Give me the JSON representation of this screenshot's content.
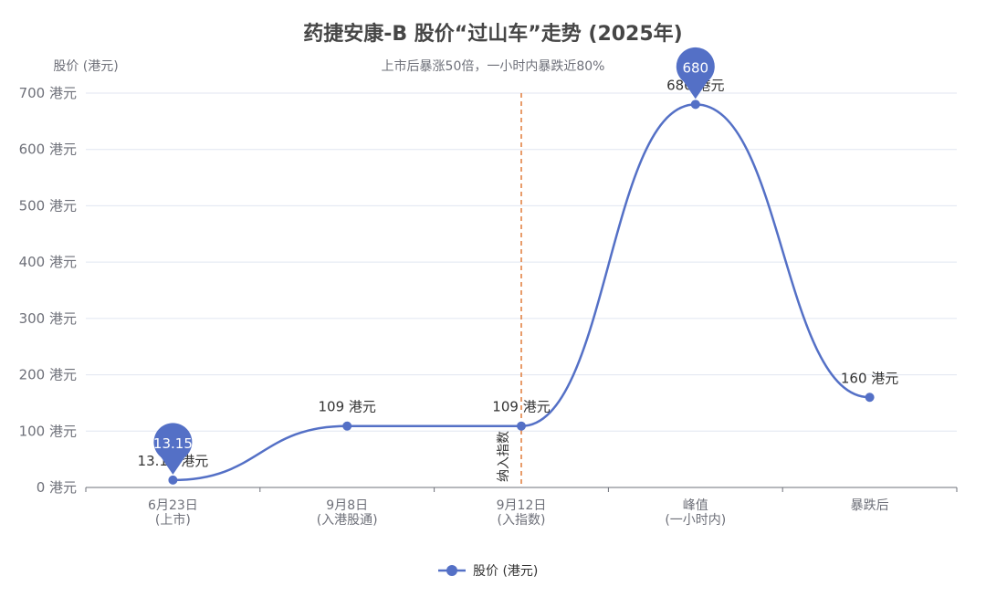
{
  "chart_data": {
    "type": "line",
    "title": "药捷安康-B 股价“过山车”走势 (2025年)",
    "subtitle": "上市后暴涨50倍，一小时内暴跌近80%",
    "ylabel": "股价 (港元)",
    "ylim": [
      0,
      700
    ],
    "yticks": [
      0,
      100,
      200,
      300,
      400,
      500,
      600,
      700
    ],
    "y_unit_suffix": " 港元",
    "categories": [
      [
        "6月23日",
        "(上市)"
      ],
      [
        "9月8日",
        "(入港股通)"
      ],
      [
        "9月12日",
        "(入指数)"
      ],
      [
        "峰值",
        "(一小时内)"
      ],
      [
        "暴跌后",
        ""
      ]
    ],
    "series": [
      {
        "name": "股价 (港元)",
        "color": "#5470c6",
        "smooth": true,
        "values": [
          13.15,
          109,
          109,
          680,
          160
        ],
        "labels": [
          "13.15 港元",
          "109 港元",
          "109 港元",
          "680 港元",
          "160 港元"
        ]
      }
    ],
    "mark_points": [
      {
        "index": 0,
        "label": "13.15"
      },
      {
        "index": 3,
        "label": "680"
      }
    ],
    "mark_line": {
      "index": 2,
      "label": "纳入指数",
      "color": "#e07b39"
    },
    "legend_position": "bottom-center",
    "grid": true
  }
}
